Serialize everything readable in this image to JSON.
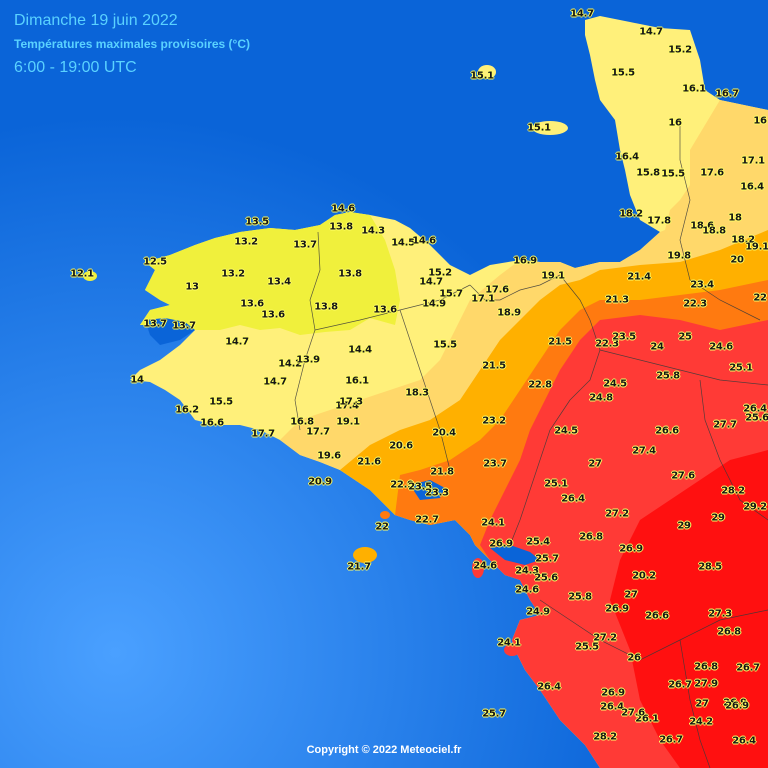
{
  "header": {
    "date": "Dimanche 19 juin 2022",
    "subtitle": "Températures maximales provisoires (°C)",
    "period": "6:00 - 19:00 UTC"
  },
  "footer": {
    "copyright": "Copyright © 2022 Meteociel.fr"
  },
  "colors": {
    "sea": "#0a64d8",
    "lt15": "#f0f03c",
    "t15_17": "#fff07a",
    "t17_20": "#ffd86a",
    "t20_22": "#ffb000",
    "t22_24": "#ff7a10",
    "t24_27": "#ff3a36",
    "t27_plus": "#ff1010"
  },
  "stations": [
    {
      "v": "14.7"
    },
    {
      "v": "14.7"
    },
    {
      "v": "15.2"
    },
    {
      "v": "15.1"
    },
    {
      "v": "15.5"
    },
    {
      "v": "16.1"
    },
    {
      "v": "16.7"
    },
    {
      "v": "15.1"
    },
    {
      "v": "16"
    },
    {
      "v": "16"
    },
    {
      "v": "16.4"
    },
    {
      "v": "15.8"
    },
    {
      "v": "15.5"
    },
    {
      "v": "17.6"
    },
    {
      "v": "17.1"
    },
    {
      "v": "16.4"
    },
    {
      "v": "18.2"
    },
    {
      "v": "17.8"
    },
    {
      "v": "18.6"
    },
    {
      "v": "18.8"
    },
    {
      "v": "18"
    },
    {
      "v": "18.2"
    },
    {
      "v": "19.8"
    },
    {
      "v": "20"
    },
    {
      "v": "19.1"
    },
    {
      "v": "13.5"
    },
    {
      "v": "14.6"
    },
    {
      "v": "13.8"
    },
    {
      "v": "14.3"
    },
    {
      "v": "14.5"
    },
    {
      "v": "14.6"
    },
    {
      "v": "13.2"
    },
    {
      "v": "13.7"
    },
    {
      "v": "12.5"
    },
    {
      "v": "12.1"
    },
    {
      "v": "13.2"
    },
    {
      "v": "13.8"
    },
    {
      "v": "15.2"
    },
    {
      "v": "16.9"
    },
    {
      "v": "19.1"
    },
    {
      "v": "21.4"
    },
    {
      "v": "23.4"
    },
    {
      "v": "13"
    },
    {
      "v": "13.4"
    },
    {
      "v": "14.7"
    },
    {
      "v": "15.7"
    },
    {
      "v": "17.6"
    },
    {
      "v": "17.1"
    },
    {
      "v": "13.6"
    },
    {
      "v": "13.8"
    },
    {
      "v": "13.6"
    },
    {
      "v": "14.9"
    },
    {
      "v": "13.6"
    },
    {
      "v": "18.9"
    },
    {
      "v": "21.3"
    },
    {
      "v": "22.3"
    },
    {
      "v": "22"
    },
    {
      "v": "13.7"
    },
    {
      "v": "13.7"
    },
    {
      "v": "14.7"
    },
    {
      "v": "14.4"
    },
    {
      "v": "15.5"
    },
    {
      "v": "21.5"
    },
    {
      "v": "22.3"
    },
    {
      "v": "23.5"
    },
    {
      "v": "24"
    },
    {
      "v": "25"
    },
    {
      "v": "24.6"
    },
    {
      "v": "14.2"
    },
    {
      "v": "13.9"
    },
    {
      "v": "14"
    },
    {
      "v": "14.7"
    },
    {
      "v": "16.1"
    },
    {
      "v": "21.5"
    },
    {
      "v": "22.8"
    },
    {
      "v": "24.5"
    },
    {
      "v": "25.8"
    },
    {
      "v": "25.1"
    },
    {
      "v": "15.5"
    },
    {
      "v": "16.2"
    },
    {
      "v": "18.3"
    },
    {
      "v": "24.8"
    },
    {
      "v": "17.4"
    },
    {
      "v": "17.3"
    },
    {
      "v": "26.4"
    },
    {
      "v": "16.6"
    },
    {
      "v": "16.8"
    },
    {
      "v": "19.1"
    },
    {
      "v": "23.2"
    },
    {
      "v": "25.6"
    },
    {
      "v": "17.7"
    },
    {
      "v": "17.7"
    },
    {
      "v": "20.4"
    },
    {
      "v": "24.5"
    },
    {
      "v": "26.6"
    },
    {
      "v": "27.7"
    },
    {
      "v": "20.6"
    },
    {
      "v": "27.4"
    },
    {
      "v": "19.6"
    },
    {
      "v": "21.6"
    },
    {
      "v": "23.7"
    },
    {
      "v": "27"
    },
    {
      "v": "21.8"
    },
    {
      "v": "27.6"
    },
    {
      "v": "20.9"
    },
    {
      "v": "22.9"
    },
    {
      "v": "23.5"
    },
    {
      "v": "23.3"
    },
    {
      "v": "25.1"
    },
    {
      "v": "28.2"
    },
    {
      "v": "26.4"
    },
    {
      "v": "29.2"
    },
    {
      "v": "22.7"
    },
    {
      "v": "27.2"
    },
    {
      "v": "22"
    },
    {
      "v": "24.1"
    },
    {
      "v": "29"
    },
    {
      "v": "29"
    },
    {
      "v": "26.8"
    },
    {
      "v": "26.9"
    },
    {
      "v": "25.4"
    },
    {
      "v": "26.9"
    },
    {
      "v": "25.7"
    },
    {
      "v": "24.6"
    },
    {
      "v": "24.3"
    },
    {
      "v": "28.5"
    },
    {
      "v": "21.7"
    },
    {
      "v": "25.6"
    },
    {
      "v": "20.2"
    },
    {
      "v": "24.6"
    },
    {
      "v": "27"
    },
    {
      "v": "25.8"
    },
    {
      "v": "26.9"
    },
    {
      "v": "24.9"
    },
    {
      "v": "26.6"
    },
    {
      "v": "27.3"
    },
    {
      "v": "27.2"
    },
    {
      "v": "26.8"
    },
    {
      "v": "24.1"
    },
    {
      "v": "25.5"
    },
    {
      "v": "26"
    },
    {
      "v": "26.8"
    },
    {
      "v": "26.7"
    },
    {
      "v": "26.4"
    },
    {
      "v": "26.7"
    },
    {
      "v": "27.9"
    },
    {
      "v": "26.9"
    },
    {
      "v": "26.4"
    },
    {
      "v": "27"
    },
    {
      "v": "26.9"
    },
    {
      "v": "26.9"
    },
    {
      "v": "26.1"
    },
    {
      "v": "27.6"
    },
    {
      "v": "24.2"
    },
    {
      "v": "25.7"
    },
    {
      "v": "28.2"
    },
    {
      "v": "26.7"
    },
    {
      "v": "26.4"
    }
  ]
}
